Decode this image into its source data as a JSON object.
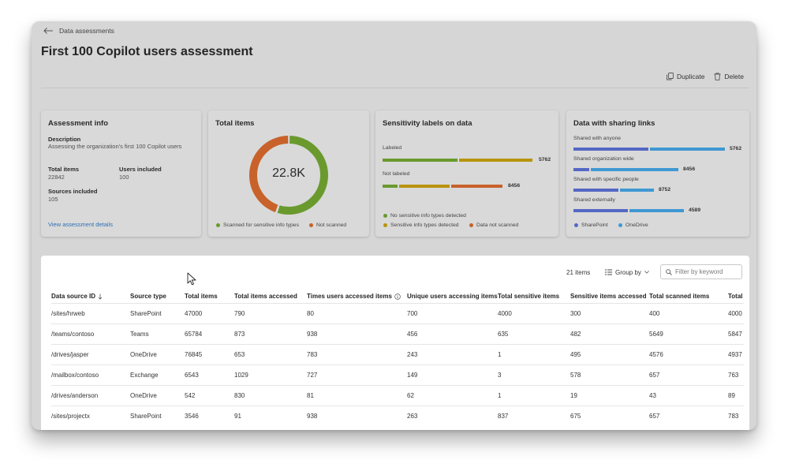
{
  "breadcrumb": {
    "back_label": "Data assessments"
  },
  "page": {
    "title": "First 100 Copilot users assessment"
  },
  "toolbar": {
    "duplicate_label": "Duplicate",
    "delete_label": "Delete"
  },
  "assessment_info": {
    "title": "Assessment info",
    "description_label": "Description",
    "description_text": "Assessing the organization's first 100 Copilot users",
    "total_items_label": "Total items",
    "total_items_value": "22842",
    "users_included_label": "Users included",
    "users_included_value": "100",
    "sources_included_label": "Sources included",
    "sources_included_value": "105",
    "link": "View assessment details"
  },
  "total_items": {
    "title": "Total items",
    "center_value": "22.8K",
    "scanned_fraction": 0.55,
    "legend": [
      {
        "label": "Scanned for sensitive info types",
        "color": "#6a9a2e"
      },
      {
        "label": "Not scanned",
        "color": "#c8622a"
      }
    ]
  },
  "sensitivity": {
    "title": "Sensitivity labels on data",
    "rows": [
      {
        "label": "Labeled",
        "value": "5762",
        "segments": [
          0.5,
          0.5
        ]
      },
      {
        "label": "Not labeled",
        "value": "8456",
        "segments": [
          0.14,
          0.43,
          0.43
        ]
      }
    ],
    "legend": [
      {
        "label": "No sensitive info types detected",
        "color": "#6a9a2e"
      },
      {
        "label": "Sensitive info types detected",
        "color": "#b8940c"
      },
      {
        "label": "Data not scanned",
        "color": "#c8622a"
      }
    ]
  },
  "sharing": {
    "title": "Data with sharing links",
    "rows": [
      {
        "label": "Shared with anyone",
        "value": "5762",
        "sharepoint": 0.5,
        "onedrive": 0.5,
        "total": 1.0
      },
      {
        "label": "Shared organization wide",
        "value": "8456",
        "sharepoint": 0.15,
        "onedrive": 0.85,
        "total": 0.69
      },
      {
        "label": "Shared with specific people",
        "value": "8752",
        "sharepoint": 0.55,
        "onedrive": 0.45,
        "total": 0.53
      },
      {
        "label": "Shared externally",
        "value": "4589",
        "sharepoint": 0.5,
        "onedrive": 0.5,
        "total": 0.73
      }
    ],
    "legend": [
      {
        "label": "SharePoint",
        "color": "#5468c4"
      },
      {
        "label": "OneDrive",
        "color": "#3f98d2"
      }
    ]
  },
  "table": {
    "count": "21 items",
    "group_by": "Group by",
    "filter_placeholder": "Filter by keyword",
    "columns": [
      "Data source ID",
      "Source type",
      "Total items",
      "Total items accessed",
      "Times users accessed items",
      "Unique users accessing items",
      "Total sensitive items",
      "Sensitive items accessed",
      "Total scanned items",
      "Total"
    ],
    "rows": [
      [
        "/sites/hrweb",
        "SharePoint",
        "47000",
        "790",
        "80",
        "700",
        "4000",
        "300",
        "400",
        "4000"
      ],
      [
        "/teams/contoso",
        "Teams",
        "65784",
        "873",
        "938",
        "456",
        "635",
        "482",
        "5649",
        "5847"
      ],
      [
        "/drives/jasper",
        "OneDrive",
        "76845",
        "653",
        "783",
        "243",
        "1",
        "495",
        "4576",
        "4937"
      ],
      [
        "/mailbox/contoso",
        "Exchange",
        "6543",
        "1029",
        "727",
        "149",
        "3",
        "578",
        "657",
        "763"
      ],
      [
        "/drives/anderson",
        "OneDrive",
        "542",
        "830",
        "81",
        "62",
        "1",
        "19",
        "43",
        "89"
      ],
      [
        "/sites/projectx",
        "SharePoint",
        "3546",
        "91",
        "938",
        "263",
        "837",
        "675",
        "657",
        "783"
      ]
    ]
  }
}
